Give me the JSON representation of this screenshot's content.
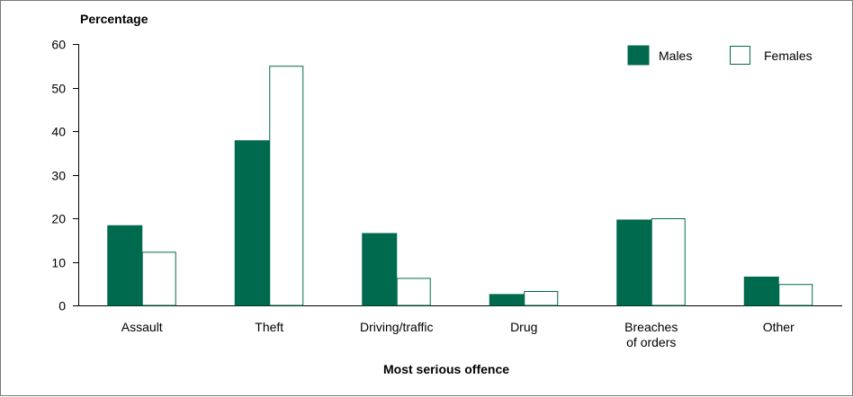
{
  "chart_data": {
    "type": "bar",
    "ylabel": "Percentage",
    "xlabel": "Most serious offence",
    "ylim": [
      0,
      60
    ],
    "yticks": [
      0,
      10,
      20,
      30,
      40,
      50,
      60
    ],
    "categories": [
      [
        "Assault"
      ],
      [
        "Theft"
      ],
      [
        "Driving/traffic"
      ],
      [
        "Drug"
      ],
      [
        "Breaches",
        "of orders"
      ],
      [
        "Other"
      ]
    ],
    "series": [
      {
        "name": "Males",
        "values": [
          18.3,
          37.8,
          16.5,
          2.5,
          19.6,
          6.5
        ]
      },
      {
        "name": "Females",
        "values": [
          12.3,
          55.0,
          6.3,
          3.3,
          20.0,
          4.9
        ]
      }
    ],
    "legend_position": "top-right",
    "colors": {
      "males": "#006a4e",
      "females": "#ffffff",
      "stroke": "#006a4e",
      "axis": "#000000"
    },
    "grid": false
  }
}
